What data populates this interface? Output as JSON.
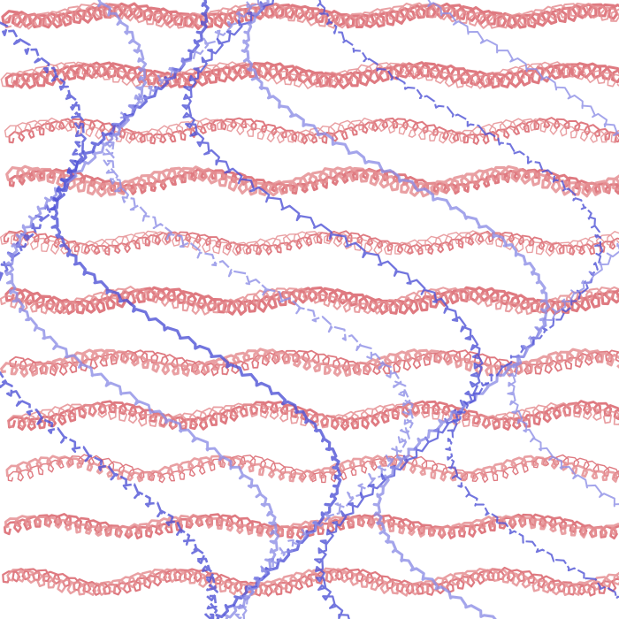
{
  "artwork": {
    "background": "#ffffff",
    "style": "overlapping scribbled cursive-like strokes",
    "horizontal_scribble_color": "#d9636b",
    "horizontal_scribble_color_light": "#e58f93",
    "horizontal_scribble_count": 11,
    "wave_scribble_color": "#4f52d6",
    "wave_scribble_color_light": "#8d8fe6",
    "wave_scribble_count": 8,
    "printed_text": ""
  }
}
